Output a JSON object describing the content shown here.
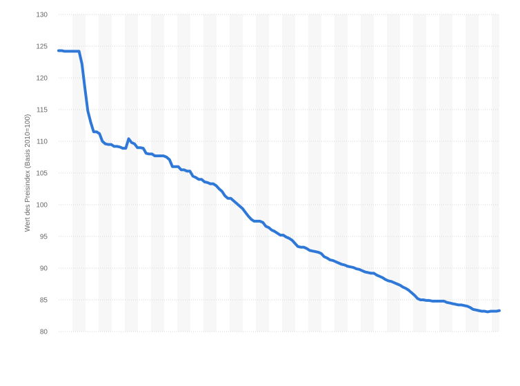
{
  "chart_data": {
    "type": "line",
    "ylabel": "Wert des Preisindex (Basis 2010=100)",
    "ylim": [
      80,
      130
    ],
    "yticks": [
      130,
      125,
      120,
      115,
      110,
      105,
      100,
      95,
      90,
      85,
      80
    ],
    "grid": true,
    "series": [
      {
        "color": "#2f78d8",
        "values": [
          124.3,
          124.3,
          124.2,
          124.2,
          124.2,
          124.2,
          124.2,
          124.2,
          122.2,
          118.4,
          114.8,
          113.0,
          111.5,
          111.5,
          111.2,
          110.0,
          109.6,
          109.5,
          109.5,
          109.2,
          109.2,
          109.1,
          108.9,
          108.9,
          110.4,
          109.8,
          109.6,
          109.0,
          109.0,
          108.9,
          108.1,
          108.0,
          108.0,
          107.7,
          107.7,
          107.7,
          107.7,
          107.5,
          107.1,
          106.0,
          106.0,
          106.0,
          105.5,
          105.5,
          105.3,
          105.3,
          104.5,
          104.3,
          104.0,
          104.0,
          103.6,
          103.5,
          103.3,
          103.3,
          103.0,
          102.5,
          102.1,
          101.4,
          101.0,
          101.0,
          100.6,
          100.2,
          99.8,
          99.4,
          98.8,
          98.2,
          97.7,
          97.4,
          97.4,
          97.4,
          97.2,
          96.6,
          96.4,
          96.0,
          95.8,
          95.5,
          95.2,
          95.2,
          94.9,
          94.7,
          94.4,
          93.9,
          93.4,
          93.3,
          93.3,
          93.1,
          92.8,
          92.7,
          92.6,
          92.5,
          92.3,
          91.8,
          91.6,
          91.3,
          91.2,
          91.0,
          90.8,
          90.6,
          90.5,
          90.3,
          90.2,
          90.1,
          89.9,
          89.8,
          89.6,
          89.4,
          89.3,
          89.2,
          89.2,
          88.9,
          88.7,
          88.5,
          88.2,
          88.0,
          87.9,
          87.7,
          87.5,
          87.3,
          87.0,
          86.8,
          86.5,
          86.1,
          85.7,
          85.2,
          85.0,
          85.0,
          84.9,
          84.9,
          84.8,
          84.8,
          84.8,
          84.8,
          84.8,
          84.6,
          84.5,
          84.4,
          84.3,
          84.2,
          84.2,
          84.1,
          84.0,
          83.8,
          83.5,
          83.4,
          83.3,
          83.2,
          83.2,
          83.1,
          83.2,
          83.2,
          83.2,
          83.3
        ]
      }
    ]
  }
}
